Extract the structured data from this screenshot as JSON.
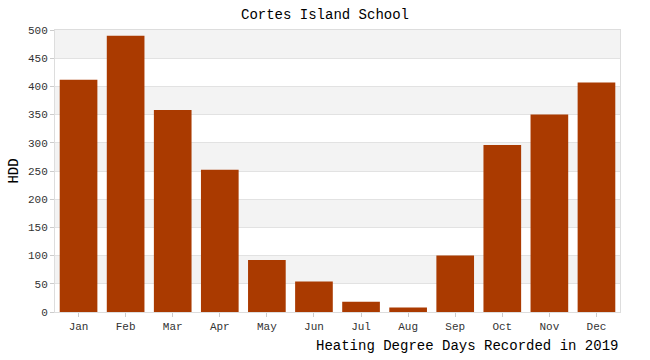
{
  "chart_data": {
    "type": "bar",
    "title": "Cortes Island School",
    "ylabel": "HDD",
    "xlabel": "Heating Degree Days Recorded in 2019",
    "categories": [
      "Jan",
      "Feb",
      "Mar",
      "Apr",
      "May",
      "Jun",
      "Jul",
      "Aug",
      "Sep",
      "Oct",
      "Nov",
      "Dec"
    ],
    "values": [
      412,
      490,
      358,
      252,
      92,
      54,
      18,
      8,
      100,
      296,
      350,
      407
    ],
    "color": "#aa3a00",
    "ylim": [
      0,
      500
    ],
    "yticks": [
      0,
      50,
      100,
      150,
      200,
      250,
      300,
      350,
      400,
      450,
      500
    ],
    "grid": true
  }
}
